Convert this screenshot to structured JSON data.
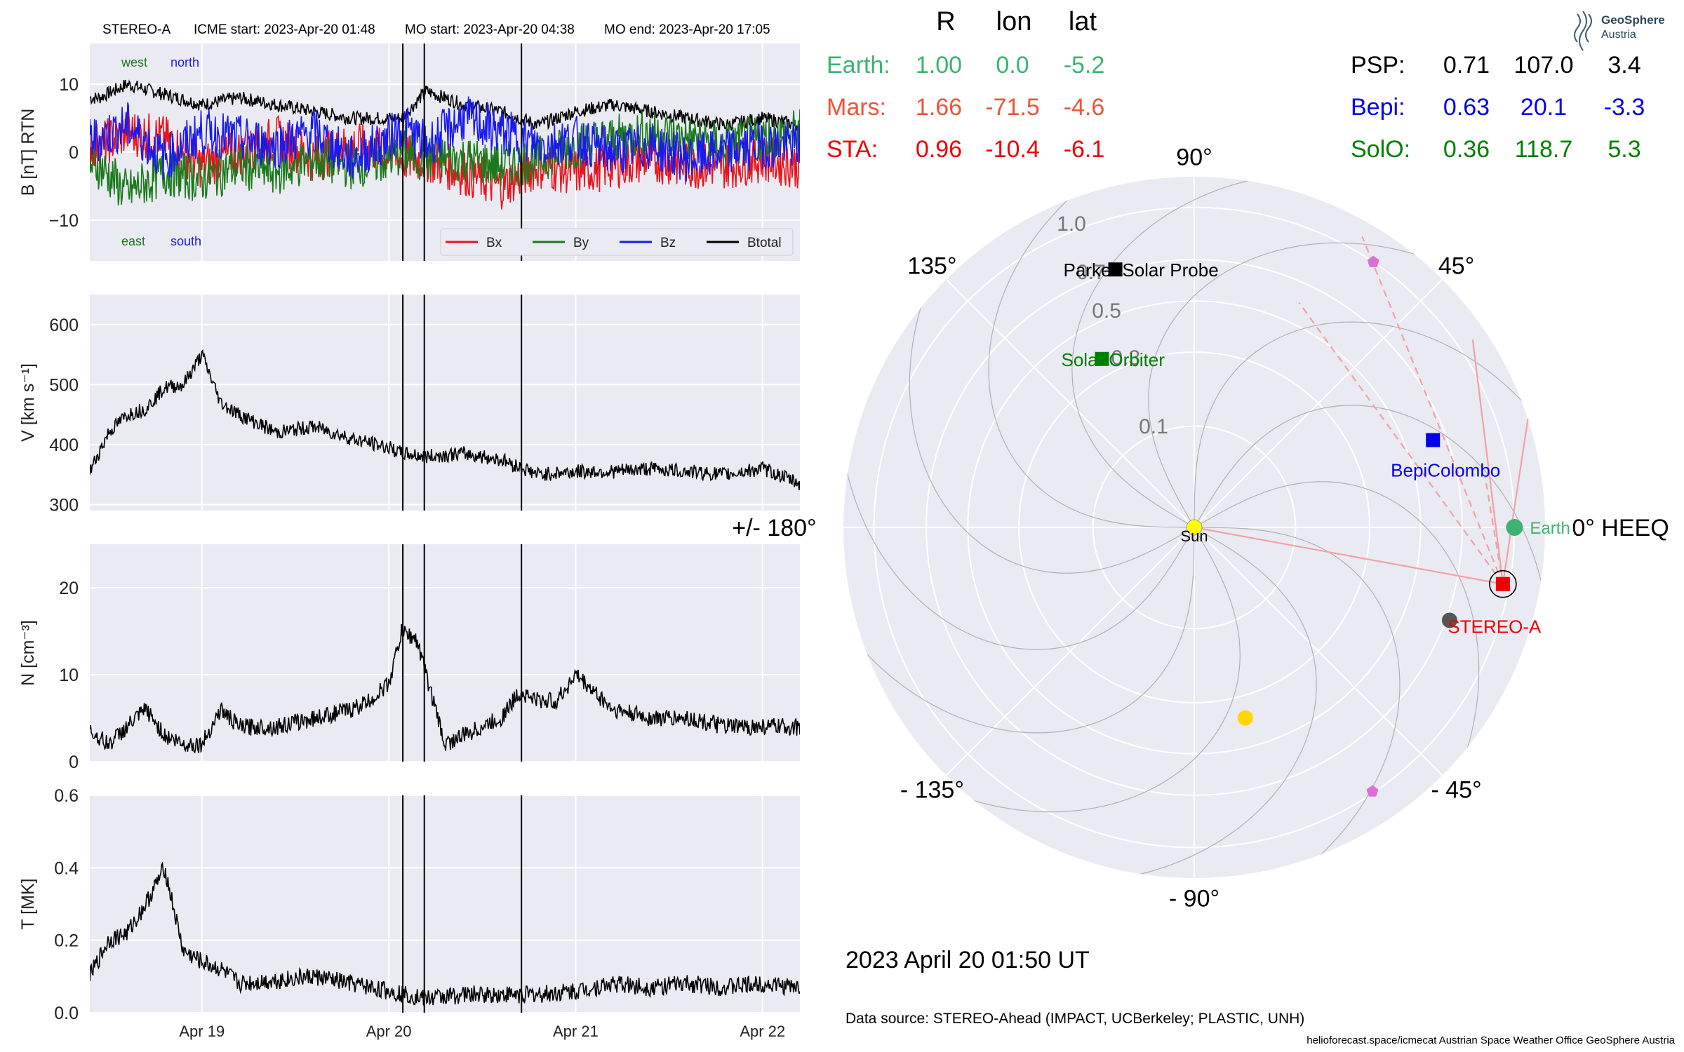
{
  "header": {
    "spacecraft": "STEREO-A",
    "icme_start": "ICME start: 2023-Apr-20 01:48",
    "mo_start": "MO start: 2023-Apr-20 04:38",
    "mo_end": "MO end: 2023-Apr-20 17:05"
  },
  "colors": {
    "bx": "#e8141c",
    "by": "#1a7a1a",
    "bz": "#1a1aee",
    "btotal": "#000000",
    "panel_bg": "#eaeaf2",
    "grid": "#ffffff",
    "earth": "#3cb371",
    "mars": "#f0533a",
    "sta": "#ee0000",
    "psp": "#000000",
    "bepi": "#0000ee",
    "solo": "#008000"
  },
  "table": {
    "headers": [
      "R",
      "lon",
      "lat"
    ],
    "rows_left": [
      {
        "name": "Earth:",
        "r": "1.00",
        "lon": "0.0",
        "lat": "-5.2",
        "color": "#3cb371"
      },
      {
        "name": "Mars:",
        "r": "1.66",
        "lon": "-71.5",
        "lat": "-4.6",
        "color": "#f0533a"
      },
      {
        "name": "STA:",
        "r": "0.96",
        "lon": "-10.4",
        "lat": "-6.1",
        "color": "#ee0000"
      }
    ],
    "rows_right": [
      {
        "name": "PSP:",
        "r": "0.71",
        "lon": "107.0",
        "lat": "3.4",
        "color": "#000000"
      },
      {
        "name": "Bepi:",
        "r": "0.63",
        "lon": "20.1",
        "lat": "-3.3",
        "color": "#0000ee"
      },
      {
        "name": "SolO:",
        "r": "0.36",
        "lon": "118.7",
        "lat": "5.3",
        "color": "#008000"
      }
    ]
  },
  "logo": {
    "line1": "GeoSphere",
    "line2": "Austria"
  },
  "polar": {
    "angle_labels": [
      {
        "text": "0° HEEQ",
        "deg": 0
      },
      {
        "text": "45°",
        "deg": 45
      },
      {
        "text": "90°",
        "deg": 90
      },
      {
        "text": "135°",
        "deg": 135
      },
      {
        "text": "+/- 180°",
        "deg": 180
      },
      {
        "text": "- 135°",
        "deg": -135
      },
      {
        "text": "- 90°",
        "deg": -90
      },
      {
        "text": "- 45°",
        "deg": -45
      }
    ],
    "radial_labels": [
      "0.1",
      "0.3",
      "0.5",
      "0.7",
      "1.0"
    ],
    "bodies": [
      {
        "name": "Earth",
        "label": "Earth",
        "r": 1.0,
        "lon": 0.0,
        "color": "#3cb371",
        "marker": "circle"
      },
      {
        "name": "STEREO-A",
        "label": "STEREO-A",
        "r": 0.96,
        "lon": -10.4,
        "color": "#ee0000",
        "marker": "square"
      },
      {
        "name": "BepiColombo",
        "label": "BepiColombo",
        "r": 0.63,
        "lon": 20.1,
        "color": "#0000ee",
        "marker": "square"
      },
      {
        "name": "Parker Solar Probe",
        "label": "Parker Solar Probe",
        "r": 0.71,
        "lon": 107.0,
        "color": "#000000",
        "marker": "square"
      },
      {
        "name": "Solar Orbiter",
        "label": "Solar Orbiter",
        "r": 0.36,
        "lon": 118.7,
        "color": "#008000",
        "marker": "square"
      },
      {
        "name": "Sun",
        "label": "Sun",
        "r": 0.0,
        "lon": 0.0,
        "color": "#ffff00",
        "marker": "sun"
      }
    ]
  },
  "timestamp": "2023 April 20  01:50 UT",
  "datasource": "Data source: STEREO-Ahead (IMPACT, UCBerkeley; PLASTIC, UNH)",
  "footer": "helioforecast.space/icmecat   Austrian Space Weather Office   GeoSphere Austria",
  "chart_data": [
    {
      "type": "line",
      "ylabel": "B [nT] RTN",
      "ylim": [
        -16,
        16
      ],
      "yticks": [
        "10",
        "0",
        "−10"
      ],
      "x_range_days": [
        18.4,
        22.2
      ],
      "annotations": [
        "west",
        "north",
        "east",
        "south"
      ],
      "legend": [
        "Bx",
        "By",
        "Bz",
        "Btotal"
      ],
      "legend_position": "lower-right",
      "series": [
        {
          "name": "Btotal",
          "x": [
            18.45,
            18.6,
            18.8,
            19.0,
            19.2,
            19.4,
            19.6,
            19.8,
            20.0,
            20.07,
            20.2,
            20.4,
            20.6,
            20.8,
            21.0,
            21.2,
            21.4,
            21.6,
            21.8,
            22.0,
            22.2
          ],
          "values": [
            8,
            10,
            8.5,
            7,
            8,
            7,
            6,
            5,
            5,
            5,
            9,
            7,
            6,
            4,
            6,
            7,
            6,
            5,
            4,
            5,
            4
          ]
        },
        {
          "name": "Bx",
          "x": [
            18.45,
            18.6,
            18.8,
            19.0,
            19.2,
            19.4,
            19.6,
            19.8,
            20.0,
            20.07,
            20.2,
            20.4,
            20.6,
            20.8,
            21.0,
            21.2,
            21.4,
            21.6,
            21.8,
            22.0,
            22.2
          ],
          "values": [
            1,
            3,
            2,
            -2,
            0,
            2,
            -1,
            1,
            0,
            -1,
            -1,
            -3,
            -5,
            -2,
            -3,
            -2,
            -1,
            -2,
            -2,
            -1,
            -2
          ]
        },
        {
          "name": "By",
          "x": [
            18.45,
            18.6,
            18.8,
            19.0,
            19.2,
            19.4,
            19.6,
            19.8,
            20.0,
            20.07,
            20.2,
            20.4,
            20.6,
            20.8,
            21.0,
            21.2,
            21.4,
            21.6,
            21.8,
            22.0,
            22.2
          ],
          "values": [
            -2,
            -6,
            -3,
            -4,
            -2,
            -3,
            -1,
            -2,
            -1,
            0,
            -1,
            -1,
            -2,
            -1,
            1,
            2,
            3,
            2,
            1,
            2,
            3
          ]
        },
        {
          "name": "Bz",
          "x": [
            18.45,
            18.6,
            18.8,
            19.0,
            19.2,
            19.4,
            19.6,
            19.8,
            20.0,
            20.07,
            20.2,
            20.4,
            20.6,
            20.8,
            21.0,
            21.2,
            21.4,
            21.6,
            21.8,
            22.0,
            22.2
          ],
          "values": [
            2,
            4,
            -1,
            3,
            2,
            1,
            3,
            -1,
            2,
            4,
            1,
            5,
            3,
            1,
            2,
            0,
            1,
            -1,
            0,
            1,
            1
          ]
        }
      ]
    },
    {
      "type": "line",
      "ylabel": "V [km s⁻¹]",
      "ylim": [
        290,
        650
      ],
      "yticks": [
        "600",
        "500",
        "400",
        "300"
      ],
      "x_range_days": [
        18.4,
        22.2
      ],
      "series": [
        {
          "name": "V",
          "x": [
            18.4,
            18.5,
            18.6,
            18.7,
            18.8,
            18.9,
            19.0,
            19.1,
            19.2,
            19.4,
            19.6,
            19.8,
            20.0,
            20.07,
            20.2,
            20.4,
            20.6,
            20.8,
            21.0,
            21.2,
            21.4,
            21.6,
            21.8,
            22.0,
            22.2
          ],
          "values": [
            355,
            420,
            450,
            460,
            495,
            500,
            550,
            470,
            450,
            420,
            430,
            410,
            395,
            385,
            380,
            385,
            375,
            350,
            355,
            355,
            360,
            355,
            350,
            360,
            335
          ]
        }
      ]
    },
    {
      "type": "line",
      "ylabel": "N [cm⁻³]",
      "ylim": [
        0,
        25
      ],
      "yticks": [
        "20",
        "10",
        "0"
      ],
      "x_range_days": [
        18.4,
        22.2
      ],
      "series": [
        {
          "name": "N",
          "x": [
            18.4,
            18.5,
            18.6,
            18.7,
            18.8,
            18.9,
            19.0,
            19.1,
            19.2,
            19.4,
            19.6,
            19.8,
            19.9,
            20.0,
            20.07,
            20.15,
            20.2,
            20.25,
            20.3,
            20.4,
            20.5,
            20.6,
            20.7,
            20.8,
            20.9,
            21.0,
            21.2,
            21.4,
            21.6,
            21.8,
            22.0,
            22.2
          ],
          "values": [
            3.5,
            2,
            4,
            6,
            3,
            2,
            2,
            6,
            4,
            4,
            5,
            6,
            7,
            9,
            15,
            14,
            10,
            6,
            2,
            3,
            4,
            5,
            8,
            7,
            7,
            10,
            6,
            5,
            5,
            4,
            4,
            4
          ]
        }
      ]
    },
    {
      "type": "line",
      "ylabel": "T [MK]",
      "ylim": [
        0,
        0.6
      ],
      "yticks": [
        "0.6",
        "0.4",
        "0.2",
        "0.0"
      ],
      "xticks": [
        "Apr 19",
        "Apr 20",
        "Apr 21",
        "Apr 22"
      ],
      "x_range_days": [
        18.4,
        22.2
      ],
      "series": [
        {
          "name": "T",
          "x": [
            18.4,
            18.5,
            18.6,
            18.7,
            18.8,
            18.9,
            19.0,
            19.1,
            19.2,
            19.4,
            19.6,
            19.8,
            20.0,
            20.1,
            20.2,
            20.4,
            20.6,
            20.8,
            21.0,
            21.2,
            21.4,
            21.6,
            21.8,
            22.0,
            22.2
          ],
          "values": [
            0.1,
            0.2,
            0.22,
            0.3,
            0.4,
            0.17,
            0.14,
            0.12,
            0.08,
            0.09,
            0.1,
            0.08,
            0.06,
            0.05,
            0.04,
            0.05,
            0.05,
            0.05,
            0.06,
            0.08,
            0.07,
            0.08,
            0.07,
            0.08,
            0.07
          ]
        }
      ]
    }
  ]
}
